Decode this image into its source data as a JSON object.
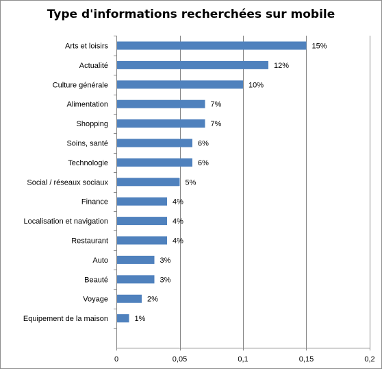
{
  "chart_data": {
    "type": "bar",
    "orientation": "horizontal",
    "title": "Type d'informations  recherchées sur mobile",
    "categories": [
      "Arts et loisirs",
      "Actualité",
      "Culture générale",
      "Alimentation",
      "Shopping",
      "Soins, santé",
      "Technologie",
      "Social / réseaux sociaux",
      "Finance",
      "Localisation et navigation",
      "Restaurant",
      "Auto",
      "Beauté",
      "Voyage",
      "Equipement de la maison"
    ],
    "values": [
      0.15,
      0.12,
      0.1,
      0.07,
      0.07,
      0.06,
      0.06,
      0.05,
      0.04,
      0.04,
      0.04,
      0.03,
      0.03,
      0.02,
      0.01
    ],
    "data_labels": [
      "15%",
      "12%",
      "10%",
      "7%",
      "7%",
      "6%",
      "6%",
      "5%",
      "4%",
      "4%",
      "4%",
      "3%",
      "3%",
      "2%",
      "1%"
    ],
    "xlim": [
      0,
      0.2
    ],
    "xticks": [
      0,
      0.05,
      0.1,
      0.15,
      0.2
    ],
    "xtick_labels": [
      "0",
      "0,05",
      "0,1",
      "0,15",
      "0,2"
    ],
    "xlabel": "",
    "ylabel": "",
    "grid": "vertical",
    "legend": "none",
    "bar_color": "#4f81bd",
    "gridline_color": "#868686"
  }
}
